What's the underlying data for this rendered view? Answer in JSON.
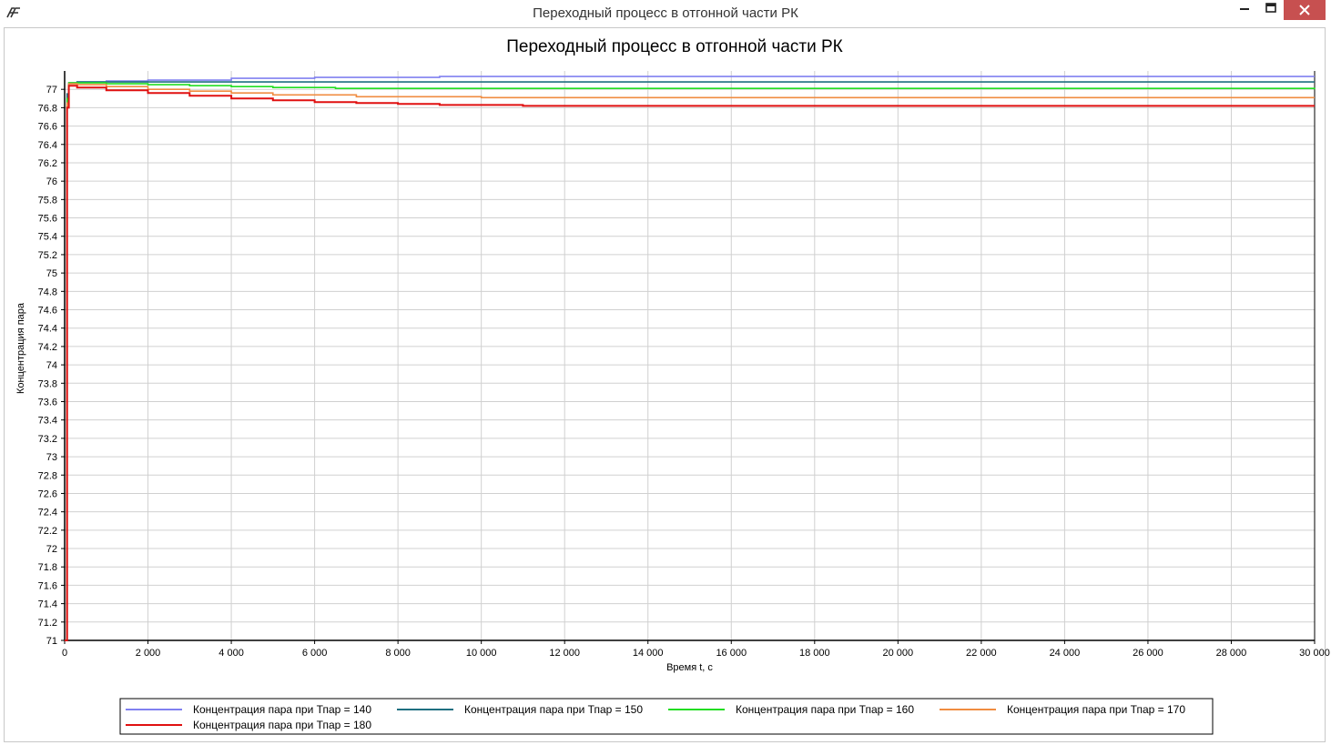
{
  "window": {
    "title": "Переходный процесс в отгонной части РК"
  },
  "icons": {
    "app": "app-logo-icon",
    "minimize": "minimize-icon",
    "maximize": "maximize-icon",
    "close": "close-icon"
  },
  "chart_data": {
    "type": "line",
    "title": "Переходный процесс в отгонной части РК",
    "xlabel": "Время t, c",
    "ylabel": "Концентрация пара",
    "xlim": [
      0,
      30000
    ],
    "ylim": [
      71,
      77.2
    ],
    "x_ticks": [
      0,
      2000,
      4000,
      6000,
      8000,
      10000,
      12000,
      14000,
      16000,
      18000,
      20000,
      22000,
      24000,
      26000,
      28000,
      30000
    ],
    "x_tick_labels": [
      "0",
      "2 000",
      "4 000",
      "6 000",
      "8 000",
      "10 000",
      "12 000",
      "14 000",
      "16 000",
      "18 000",
      "20 000",
      "22 000",
      "24 000",
      "26 000",
      "28 000",
      "30 000"
    ],
    "y_ticks": [
      71,
      71.2,
      71.4,
      71.6,
      71.8,
      72,
      72.2,
      72.4,
      72.6,
      72.8,
      73,
      73.2,
      73.4,
      73.6,
      73.8,
      74,
      74.2,
      74.4,
      74.6,
      74.8,
      75,
      75.2,
      75.4,
      75.6,
      75.8,
      76,
      76.2,
      76.4,
      76.6,
      76.8,
      77
    ],
    "y_tick_labels": [
      "71",
      "71.2",
      "71.4",
      "71.6",
      "71.8",
      "72",
      "72.2",
      "72.4",
      "72.6",
      "72.8",
      "73",
      "73.2",
      "73.4",
      "73.6",
      "73.8",
      "74",
      "74.2",
      "74.4",
      "74.6",
      "74.8",
      "75",
      "75.2",
      "75.4",
      "75.6",
      "75.8",
      "76",
      "76.2",
      "76.4",
      "76.6",
      "76.8",
      "77"
    ],
    "grid": true,
    "legend_position": "bottom",
    "series": [
      {
        "name": "Концентрация пара при Тпар = 140",
        "color": "#8080f0",
        "x": [
          0,
          60,
          100,
          300,
          1000,
          2000,
          4000,
          6000,
          9000,
          30000
        ],
        "y": [
          71,
          76.9,
          77.06,
          77.08,
          77.09,
          77.1,
          77.12,
          77.13,
          77.14,
          77.14
        ]
      },
      {
        "name": "Концентрация пара при Тпар = 150",
        "color": "#1f6f80",
        "x": [
          0,
          60,
          100,
          300,
          1000,
          3000,
          6000,
          9000,
          30000
        ],
        "y": [
          71,
          76.95,
          77.07,
          77.08,
          77.08,
          77.08,
          77.08,
          77.08,
          77.08
        ]
      },
      {
        "name": "Концентрация пара при Тпар = 160",
        "color": "#22dd22",
        "x": [
          0,
          60,
          100,
          300,
          1000,
          2000,
          3000,
          4000,
          5000,
          6500,
          30000
        ],
        "y": [
          71,
          76.9,
          77.07,
          77.07,
          77.06,
          77.05,
          77.04,
          77.03,
          77.02,
          77.01,
          77.0
        ]
      },
      {
        "name": "Концентрация пара при Тпар = 170",
        "color": "#f08c40",
        "x": [
          0,
          60,
          100,
          300,
          1000,
          2000,
          3000,
          4000,
          5000,
          7000,
          10000,
          30000
        ],
        "y": [
          71,
          76.85,
          77.06,
          77.05,
          77.03,
          77.0,
          76.98,
          76.96,
          76.94,
          76.92,
          76.91,
          76.91
        ]
      },
      {
        "name": "Концентрация пара при Тпар = 180",
        "color": "#e01010",
        "x": [
          0,
          60,
          100,
          300,
          1000,
          2000,
          3000,
          4000,
          5000,
          6000,
          7000,
          8000,
          9000,
          11000,
          30000
        ],
        "y": [
          71,
          76.8,
          77.04,
          77.02,
          76.99,
          76.96,
          76.93,
          76.9,
          76.88,
          76.86,
          76.85,
          76.84,
          76.83,
          76.82,
          76.82
        ]
      }
    ]
  }
}
